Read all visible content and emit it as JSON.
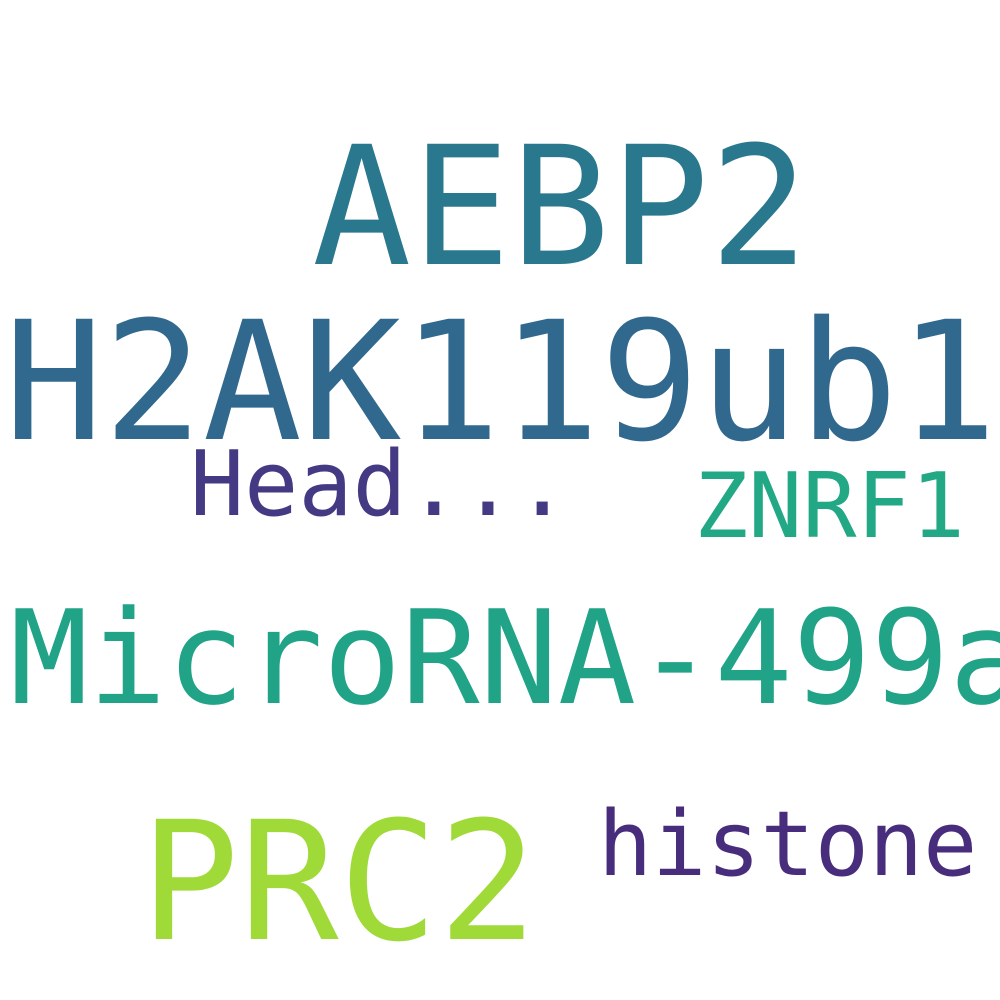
{
  "words": [
    {
      "text": "AEBP2",
      "color": "#2a788e"
    },
    {
      "text": "H2AK119ub1",
      "color": "#31688e"
    },
    {
      "text": "Head...",
      "color": "#443983"
    },
    {
      "text": "ZNRF1",
      "color": "#22a884"
    },
    {
      "text": "MicroRNA-499a",
      "color": "#20a386"
    },
    {
      "text": "PRC2",
      "color": "#a0da39"
    },
    {
      "text": "histone",
      "color": "#472d7b"
    }
  ]
}
